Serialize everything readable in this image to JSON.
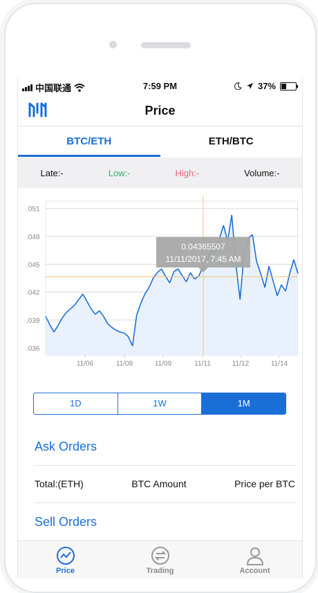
{
  "status_bar": {
    "carrier": "中国联通",
    "time": "7:59 PM",
    "battery": "37%",
    "battery_level": 0.37
  },
  "nav": {
    "title": "Price"
  },
  "tabs": [
    {
      "label": "BTC/ETH",
      "active": true
    },
    {
      "label": "ETH/BTC",
      "active": false
    }
  ],
  "stats": {
    "late": "Late:-",
    "low": "Low:-",
    "high": "High:-",
    "volume": "Volume:-"
  },
  "colors": {
    "accent": "#1a6fd6",
    "low": "#2fb36b",
    "high": "#e8667a"
  },
  "chart_data": {
    "type": "area",
    "y_ticks": [
      ".051",
      ".048",
      ".045",
      ".042",
      ".039",
      ".036"
    ],
    "x_ticks": [
      "11/06",
      "11/08",
      "11/09",
      "11/11",
      "11/12",
      "11/14"
    ],
    "ylim": [
      0.0352,
      0.0518
    ],
    "tooltip": {
      "value": "0.04365507",
      "time": "11/11/2017, 7:45 AM"
    },
    "cursor": {
      "x": "11/11/2017, 7:45 AM",
      "y": 0.04365507
    },
    "series": [
      {
        "values": [
          0.0394,
          0.0385,
          0.0377,
          0.0384,
          0.0392,
          0.0398,
          0.0402,
          0.0406,
          0.0412,
          0.0418,
          0.041,
          0.0402,
          0.0396,
          0.04,
          0.0394,
          0.0386,
          0.0382,
          0.0379,
          0.0377,
          0.0376,
          0.0372,
          0.0362,
          0.0395,
          0.0408,
          0.0418,
          0.0425,
          0.0435,
          0.0441,
          0.0445,
          0.0437,
          0.043,
          0.0442,
          0.0445,
          0.0438,
          0.0431,
          0.0441,
          0.0434,
          0.0437,
          0.0447,
          0.0453,
          0.0465,
          0.0462,
          0.0477,
          0.0492,
          0.0475,
          0.0503,
          0.045,
          0.0412,
          0.0463,
          0.0478,
          0.0482,
          0.0453,
          0.044,
          0.0425,
          0.0448,
          0.0432,
          0.0416,
          0.0428,
          0.0421,
          0.044,
          0.0455,
          0.044
        ]
      }
    ]
  },
  "range_selector": [
    {
      "label": "1D",
      "active": false
    },
    {
      "label": "1W",
      "active": false
    },
    {
      "label": "1M",
      "active": true
    }
  ],
  "orders": {
    "ask_title": "Ask Orders",
    "columns": [
      "Total:(ETH)",
      "BTC Amount",
      "Price per BTC"
    ],
    "sell_title": "Sell Orders"
  },
  "tabbar": [
    {
      "label": "Price",
      "icon": "chart-line-icon",
      "active": true
    },
    {
      "label": "Trading",
      "icon": "exchange-icon",
      "active": false
    },
    {
      "label": "Account",
      "icon": "user-icon",
      "active": false
    }
  ]
}
